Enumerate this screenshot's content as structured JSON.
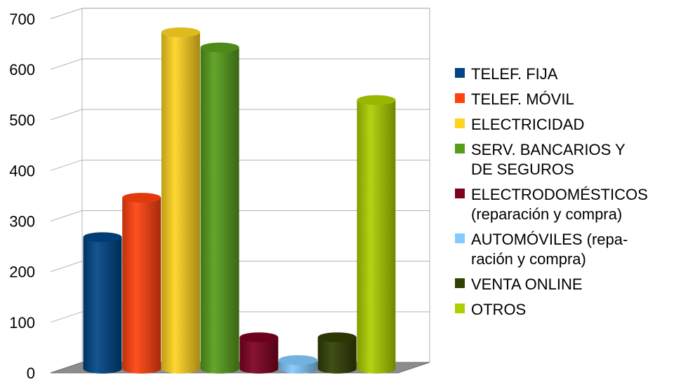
{
  "chart_data": {
    "type": "bar",
    "style": "3d-cylinder",
    "title": "",
    "xlabel": "",
    "ylabel": "",
    "ylim": [
      0,
      700
    ],
    "yticks": [
      "0",
      "100",
      "200",
      "300",
      "400",
      "500",
      "600",
      "700"
    ],
    "grid": true,
    "legend_position": "right",
    "series": [
      {
        "name": "TELEF. FIJA",
        "value": 260,
        "color": "#004586"
      },
      {
        "name": "TELEF. MÓVIL",
        "value": 338,
        "color": "#ff420e"
      },
      {
        "name": "ELECTRICIDAD",
        "value": 665,
        "color": "#ffd320"
      },
      {
        "name": "SERV. BANCARIOS Y\nDE SEGUROS",
        "value": 635,
        "color": "#579d1c"
      },
      {
        "name": "ELECTRODOMÉSTICOS\n(reparación y compra)",
        "value": 62,
        "color": "#7e0021"
      },
      {
        "name": "AUTOMÓVILES (repa-\nración y compra)",
        "value": 17,
        "color": "#83caff"
      },
      {
        "name": "VENTA ONLINE",
        "value": 62,
        "color": "#314004"
      },
      {
        "name": "OTROS",
        "value": 531,
        "color": "#aecf00"
      }
    ]
  }
}
